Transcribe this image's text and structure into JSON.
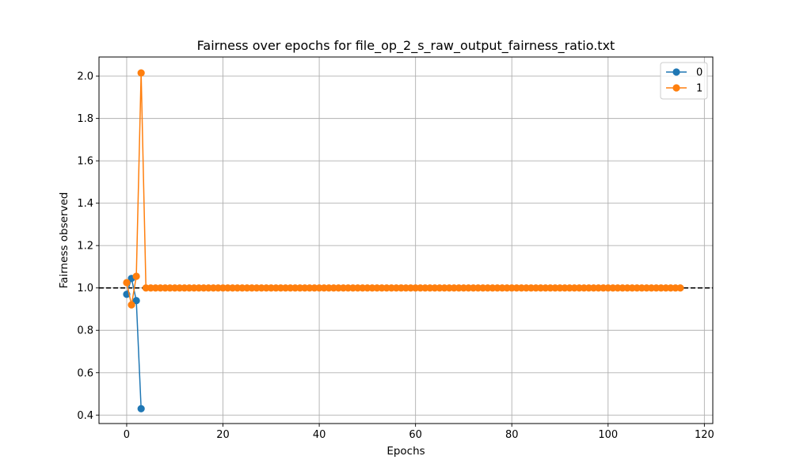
{
  "chart_data": {
    "type": "line",
    "title": "Fairness over epochs for file_op_2_s_raw_output_fairness_ratio.txt",
    "xlabel": "Epochs",
    "ylabel": "Fairness observed",
    "xlim": [
      -5.75,
      121.75
    ],
    "ylim": [
      0.36,
      2.09
    ],
    "xticks": [
      0,
      20,
      40,
      60,
      80,
      100,
      120
    ],
    "yticks": [
      0.4,
      0.6,
      0.8,
      1.0,
      1.2,
      1.4,
      1.6,
      1.8,
      2.0
    ],
    "grid": true,
    "legend_position": "top-right",
    "reference_line": {
      "y": 1.0,
      "style": "dashed",
      "color": "#000000"
    },
    "series": [
      {
        "name": "0",
        "color": "#1f77b4",
        "marker": "circle",
        "x": [
          0,
          1,
          2,
          3
        ],
        "y": [
          0.97,
          1.045,
          0.94,
          0.43
        ]
      },
      {
        "name": "1",
        "color": "#ff7f0e",
        "marker": "circle",
        "x_start": 0,
        "x_end": 115,
        "y_head": [
          1.025,
          0.92,
          1.055,
          2.015
        ],
        "y_rest": 1.0
      }
    ]
  }
}
